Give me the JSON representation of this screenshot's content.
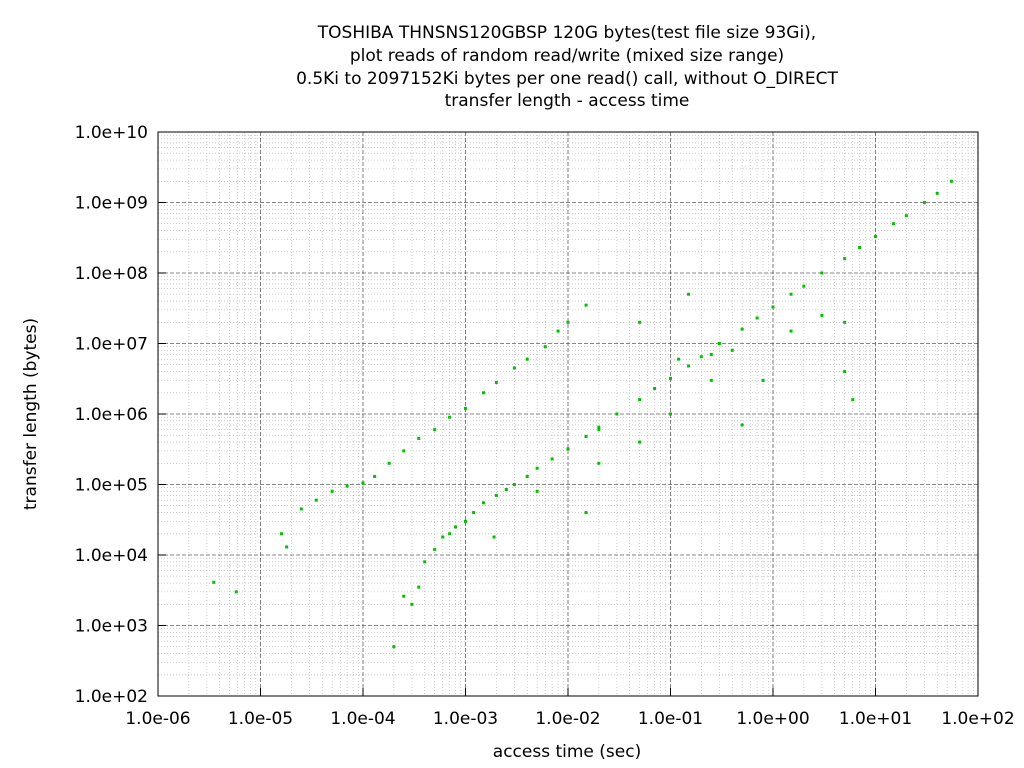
{
  "chart_data": {
    "type": "scatter",
    "title_lines": [
      "TOSHIBA THNSNS120GBSP 120G bytes(test file size 93Gi),",
      "plot reads of random read/write (mixed size range)",
      "0.5Ki to 2097152Ki bytes per one read() call, without O_DIRECT",
      "transfer length - access time"
    ],
    "xlabel": "access time (sec)",
    "ylabel": "transfer length (bytes)",
    "x_scale": "log",
    "y_scale": "log",
    "xlim": [
      1e-06,
      100
    ],
    "ylim": [
      100,
      10000000000
    ],
    "x_ticks": [
      "1.0e-06",
      "1.0e-05",
      "1.0e-04",
      "1.0e-03",
      "1.0e-02",
      "1.0e-01",
      "1.0e+00",
      "1.0e+01",
      "1.0e+02"
    ],
    "y_ticks": [
      "1.0e+02",
      "1.0e+03",
      "1.0e+04",
      "1.0e+05",
      "1.0e+06",
      "1.0e+07",
      "1.0e+08",
      "1.0e+09",
      "1.0e+10"
    ],
    "grid": true,
    "point_color": "#00c000",
    "series": [
      {
        "values": [
          [
            3.5e-06,
            4100
          ],
          [
            5.8e-06,
            3000
          ],
          [
            1.6e-05,
            20000
          ],
          [
            1.8e-05,
            13000
          ],
          [
            2.5e-05,
            45000
          ],
          [
            3.5e-05,
            60000
          ],
          [
            5e-05,
            80000
          ],
          [
            7e-05,
            95000
          ],
          [
            0.0001,
            105000
          ],
          [
            0.00013,
            130000
          ],
          [
            0.00018,
            200000
          ],
          [
            0.00025,
            300000
          ],
          [
            0.00035,
            450000
          ],
          [
            0.0005,
            600000
          ],
          [
            0.0007,
            900000
          ],
          [
            0.001,
            1200000
          ],
          [
            0.0015,
            2000000
          ],
          [
            0.002,
            2800000
          ],
          [
            0.003,
            4500000
          ],
          [
            0.004,
            6000000
          ],
          [
            0.006,
            9000000
          ],
          [
            0.008,
            15000000
          ],
          [
            0.01,
            20000000
          ],
          [
            0.015,
            35000000
          ],
          [
            0.0002,
            500
          ],
          [
            0.00025,
            2600
          ],
          [
            0.0003,
            2000
          ],
          [
            0.00035,
            3500
          ],
          [
            0.0004,
            8000
          ],
          [
            0.0005,
            12000
          ],
          [
            0.0006,
            18000
          ],
          [
            0.0007,
            20000
          ],
          [
            0.0008,
            25000
          ],
          [
            0.001,
            30000
          ],
          [
            0.0012,
            40000
          ],
          [
            0.0015,
            55000
          ],
          [
            0.002,
            70000
          ],
          [
            0.0025,
            85000
          ],
          [
            0.003,
            100000
          ],
          [
            0.004,
            130000
          ],
          [
            0.005,
            170000
          ],
          [
            0.007,
            230000
          ],
          [
            0.01,
            320000
          ],
          [
            0.015,
            480000
          ],
          [
            0.02,
            650000
          ],
          [
            0.03,
            1000000
          ],
          [
            0.05,
            1600000
          ],
          [
            0.07,
            2300000
          ],
          [
            0.1,
            3200000
          ],
          [
            0.15,
            4800000
          ],
          [
            0.2,
            6500000
          ],
          [
            0.3,
            10000000
          ],
          [
            0.5,
            16000000
          ],
          [
            0.7,
            23000000
          ],
          [
            1.0,
            33000000
          ],
          [
            1.5,
            50000000
          ],
          [
            2.0,
            65000000
          ],
          [
            3.0,
            100000000
          ],
          [
            5.0,
            160000000
          ],
          [
            7.0,
            230000000
          ],
          [
            10.0,
            330000000
          ],
          [
            15.0,
            500000000
          ],
          [
            20.0,
            650000000
          ],
          [
            30.0,
            1000000000
          ],
          [
            40.0,
            1350000000
          ],
          [
            55.0,
            2000000000
          ],
          [
            0.0019,
            18000
          ],
          [
            0.005,
            80000
          ],
          [
            0.02,
            200000
          ],
          [
            0.05,
            400000
          ],
          [
            0.1,
            1000000
          ],
          [
            0.25,
            3000000
          ],
          [
            0.4,
            8000000
          ],
          [
            0.5,
            700000
          ],
          [
            0.8,
            3000000
          ],
          [
            1.5,
            15000000
          ],
          [
            3.0,
            25000000
          ],
          [
            5.0,
            4000000
          ],
          [
            5.0,
            20000000
          ],
          [
            6.0,
            1600000
          ],
          [
            0.02,
            600000
          ],
          [
            0.05,
            20000000
          ],
          [
            0.15,
            50000000
          ],
          [
            0.25,
            7000000
          ],
          [
            0.015,
            40000
          ],
          [
            0.12,
            6000000
          ]
        ]
      }
    ]
  }
}
